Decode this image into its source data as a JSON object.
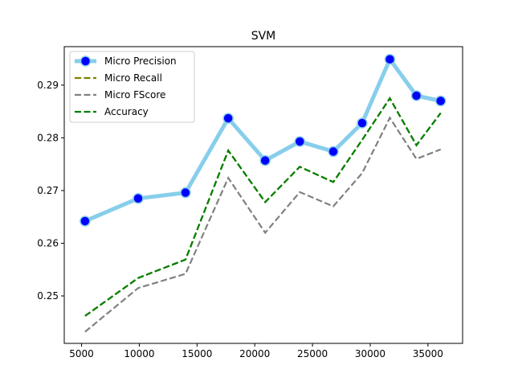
{
  "chart_data": {
    "type": "line",
    "title": "SVM",
    "xlabel": "",
    "ylabel": "",
    "x": [
      5300,
      9900,
      14000,
      17700,
      20900,
      23900,
      26800,
      29300,
      31700,
      34000,
      36100
    ],
    "xlim": [
      3500,
      38000
    ],
    "ylim": [
      0.241,
      0.2973
    ],
    "xticks": [
      5000,
      10000,
      15000,
      20000,
      25000,
      30000,
      35000
    ],
    "xtick_labels": [
      "5000",
      "10000",
      "15000",
      "20000",
      "25000",
      "30000",
      "35000"
    ],
    "yticks": [
      0.25,
      0.26,
      0.27,
      0.28,
      0.29
    ],
    "ytick_labels": [
      "0.25",
      "0.26",
      "0.27",
      "0.28",
      "0.29"
    ],
    "grid": false,
    "legend_position": "top-left",
    "series": [
      {
        "name": "Micro Precision",
        "color": "#87ceeb",
        "marker_color": "#0000ff",
        "style": "solid-thick-markers",
        "values": [
          0.2642,
          0.2685,
          0.2696,
          0.2837,
          0.2757,
          0.2793,
          0.2774,
          0.2828,
          0.2949,
          0.288,
          0.287
        ]
      },
      {
        "name": "Micro Recall",
        "color": "#808000",
        "style": "dashed",
        "values": [
          0.2462,
          0.2534,
          0.2569,
          0.2776,
          0.2678,
          0.2745,
          0.2716,
          0.2796,
          0.2875,
          0.2786,
          0.2847
        ]
      },
      {
        "name": "Micro FScore",
        "color": "#808080",
        "style": "dashed",
        "values": [
          0.2432,
          0.2515,
          0.2542,
          0.2724,
          0.262,
          0.2697,
          0.267,
          0.2733,
          0.2838,
          0.276,
          0.2778
        ]
      },
      {
        "name": "Accuracy",
        "color": "#008000",
        "style": "dashed",
        "values": [
          0.2462,
          0.2534,
          0.2569,
          0.2776,
          0.2678,
          0.2745,
          0.2716,
          0.2796,
          0.2875,
          0.2786,
          0.2847
        ]
      }
    ]
  }
}
